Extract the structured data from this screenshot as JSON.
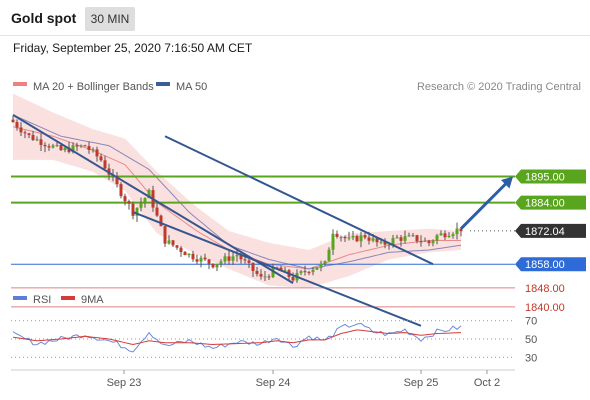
{
  "header": {
    "title": "Gold spot",
    "timeframe": "30 MIN"
  },
  "timestamp": "Friday, September 25, 2020 7:16:50 AM CET",
  "legend": {
    "items": [
      {
        "label": "MA 20 + Bollinger Bands",
        "color": "#f08080"
      },
      {
        "label": "MA 50",
        "color": "#3a5f95"
      }
    ],
    "credit": "Research © 2020 Trading Central"
  },
  "rsi_legend": {
    "items": [
      {
        "label": "RSI",
        "color": "#5b7fd6"
      },
      {
        "label": "9MA",
        "color": "#d63a3a"
      }
    ]
  },
  "chart_data": [
    {
      "type": "candlestick",
      "ylim": [
        1830,
        1935
      ],
      "x_ticks": [
        "Sep 23",
        "Sep 24",
        "Sep 25",
        "Oct 2"
      ],
      "current_price": "1872.04",
      "levels": [
        {
          "value": 1895,
          "label": "1895.00",
          "style": "resistance"
        },
        {
          "value": 1884,
          "label": "1884.00",
          "style": "resistance"
        },
        {
          "value": 1872.04,
          "label": "1872.04",
          "style": "current"
        },
        {
          "value": 1858,
          "label": "1858.00",
          "style": "pivot"
        },
        {
          "value": 1848,
          "label": "1848.00",
          "style": "support"
        },
        {
          "value": 1840,
          "label": "1840.00",
          "style": "support"
        }
      ],
      "anchors": {
        "x": [
          0,
          4,
          12,
          18,
          22,
          30,
          34,
          38,
          44,
          50,
          56,
          62,
          66,
          70,
          74,
          78,
          80,
          84,
          88,
          92,
          96,
          100,
          104,
          106,
          112
        ],
        "close": [
          1918,
          1912,
          1906,
          1908,
          1902,
          1880,
          1888,
          1868,
          1862,
          1858,
          1862,
          1852,
          1856,
          1852,
          1856,
          1858,
          1872,
          1868,
          1870,
          1866,
          1869,
          1869,
          1867,
          1870,
          1873
        ]
      },
      "ma20_anchors": {
        "x": [
          0,
          10,
          20,
          28,
          36,
          46,
          54,
          64,
          74,
          84,
          94,
          104,
          112
        ],
        "values": [
          1916,
          1912,
          1906,
          1900,
          1884,
          1872,
          1864,
          1858,
          1856,
          1862,
          1866,
          1868,
          1868
        ]
      },
      "bb_halfwidth": [
        14,
        10,
        9,
        11,
        13,
        10,
        8,
        9,
        8,
        9,
        6,
        5,
        4
      ],
      "ma50_anchors": {
        "x": [
          0,
          12,
          24,
          34,
          44,
          54,
          64,
          74,
          84,
          94,
          104,
          112
        ],
        "values": [
          1921,
          1912,
          1908,
          1898,
          1880,
          1866,
          1860,
          1856,
          1859,
          1863,
          1864,
          1866
        ]
      },
      "trendlines": [
        {
          "from": {
            "x": 0,
            "y": 1921
          },
          "to": {
            "x": 70,
            "y": 1850
          }
        },
        {
          "from": {
            "x": 38,
            "y": 1912
          },
          "to": {
            "x": 105,
            "y": 1858
          }
        },
        {
          "from": {
            "x": 30,
            "y": 1880
          },
          "to": {
            "x": 102,
            "y": 1832
          }
        }
      ],
      "projection_arrow": {
        "from": {
          "x": 112,
          "y": 1873
        },
        "to": {
          "x": 125,
          "y": 1895
        }
      }
    },
    {
      "type": "line",
      "title": "RSI",
      "ylim": [
        20,
        80
      ],
      "y_ticks": [
        70,
        50,
        30
      ],
      "anchors": {
        "x": [
          0,
          6,
          12,
          18,
          24,
          30,
          34,
          38,
          44,
          50,
          56,
          62,
          66,
          70,
          74,
          78,
          82,
          86,
          90,
          94,
          98,
          102,
          106,
          112
        ],
        "rsi": [
          55,
          45,
          50,
          55,
          48,
          38,
          58,
          42,
          48,
          40,
          47,
          45,
          52,
          42,
          53,
          48,
          62,
          67,
          58,
          55,
          60,
          50,
          58,
          63
        ],
        "ma9": [
          52,
          48,
          50,
          53,
          50,
          44,
          48,
          46,
          46,
          44,
          45,
          46,
          48,
          46,
          49,
          49,
          56,
          60,
          58,
          56,
          57,
          54,
          56,
          57
        ]
      }
    }
  ]
}
